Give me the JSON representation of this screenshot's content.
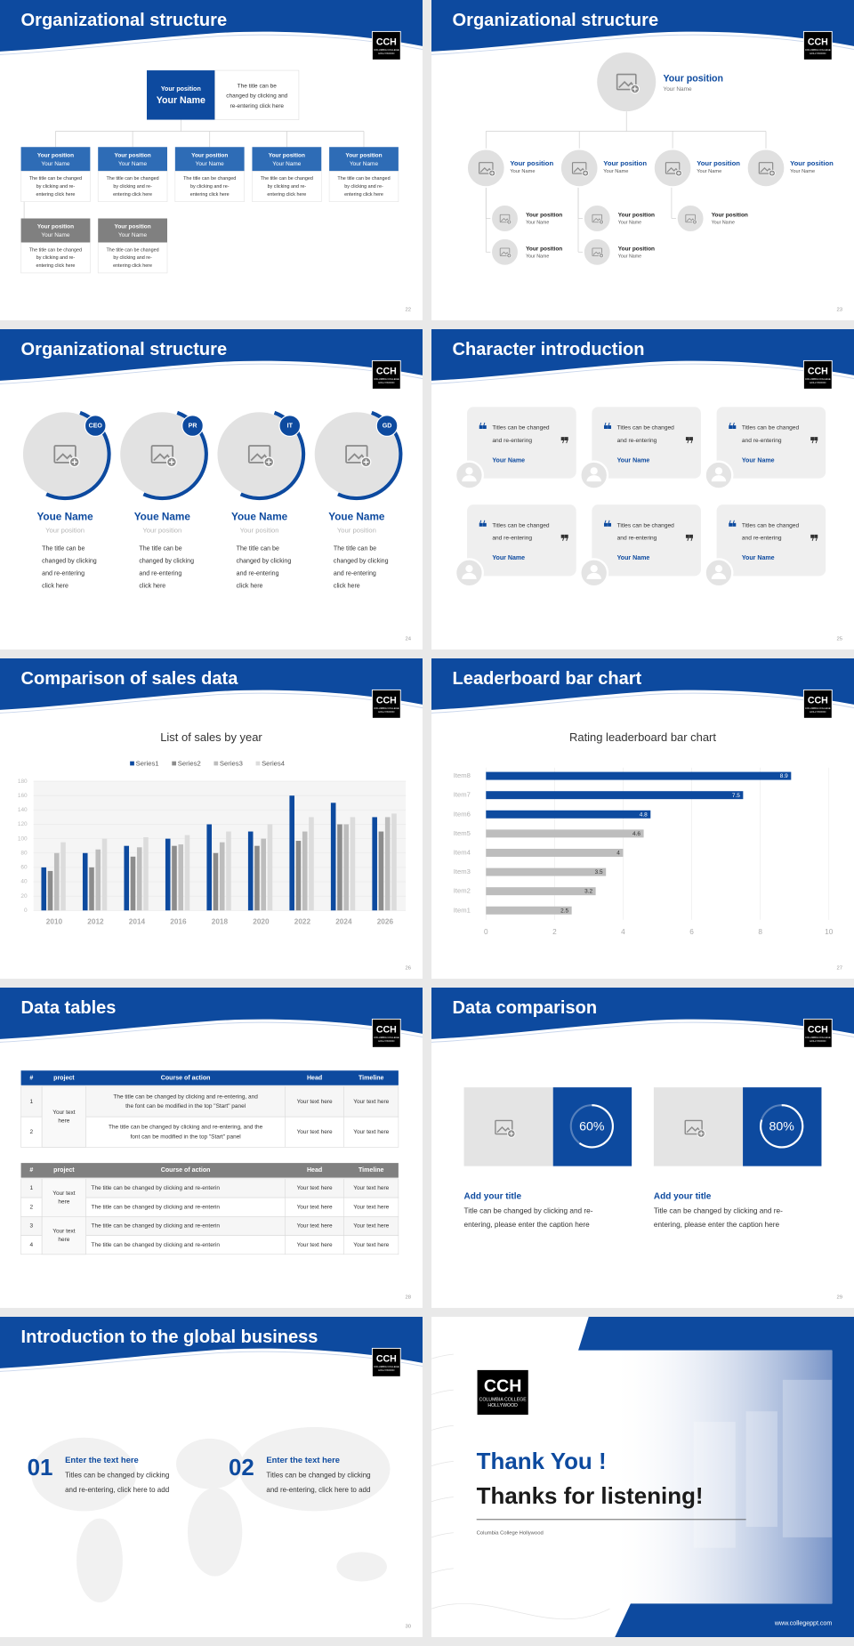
{
  "logo": {
    "mark": "CCH",
    "sub": [
      "COLUMBIA COLLEGE",
      "HOLLYWOOD"
    ]
  },
  "slides": [
    {
      "title": "Organizational structure",
      "page": "22",
      "boss": {
        "position": "Your position",
        "name": "Your Name",
        "note": [
          "The title can be",
          "changed by clicking and",
          "re-entering click here"
        ]
      },
      "members": [
        {
          "position": "Your position",
          "name": "Your Name",
          "note": [
            "The title can be changed",
            "by clicking and re-",
            "entering click here"
          ]
        },
        {
          "position": "Your position",
          "name": "Your Name",
          "note": [
            "The title can be changed",
            "by clicking and re-",
            "entering click here"
          ]
        },
        {
          "position": "Your position",
          "name": "Your Name",
          "note": [
            "The title can be changed",
            "by clicking and re-",
            "entering click here"
          ]
        },
        {
          "position": "Your position",
          "name": "Your Name",
          "note": [
            "The title can be changed",
            "by clicking and re-",
            "entering click here"
          ]
        },
        {
          "position": "Your position",
          "name": "Your Name",
          "note": [
            "The title can be changed",
            "by clicking and re-",
            "entering click here"
          ]
        },
        {
          "position": "Your position",
          "name": "Your Name",
          "note": [
            "The title can be changed",
            "by clicking and re-",
            "entering click here"
          ]
        },
        {
          "position": "Your position",
          "name": "Your Name",
          "note": [
            "The title can be changed",
            "by clicking and re-",
            "entering click here"
          ]
        }
      ]
    },
    {
      "title": "Organizational structure",
      "page": "23",
      "top": {
        "position": "Your position",
        "name": "Your Name"
      },
      "level2": [
        {
          "position": "Your position",
          "name": "Your Name"
        },
        {
          "position": "Your position",
          "name": "Your Name"
        },
        {
          "position": "Your position",
          "name": "Your Name"
        },
        {
          "position": "Your position",
          "name": "Your Name"
        }
      ],
      "level3": [
        {
          "position": "Your position",
          "name": "Your Name"
        },
        {
          "position": "Your position",
          "name": "Your Name"
        },
        {
          "position": "Your position",
          "name": "Your Name"
        },
        {
          "position": "Your position",
          "name": "Your Name"
        },
        {
          "position": "Your position",
          "name": "Your Name"
        }
      ]
    },
    {
      "title": "Organizational structure",
      "page": "24",
      "people": [
        {
          "tag": "CEO",
          "name": "Youe Name",
          "position": "Your position",
          "note": [
            "The title can be",
            "changed by clicking",
            "and re-entering",
            "click here"
          ]
        },
        {
          "tag": "PR",
          "name": "Youe Name",
          "position": "Your position",
          "note": [
            "The title can be",
            "changed by clicking",
            "and re-entering",
            "click here"
          ]
        },
        {
          "tag": "IT",
          "name": "Youe Name",
          "position": "Your position",
          "note": [
            "The title can be",
            "changed by clicking",
            "and re-entering",
            "click here"
          ]
        },
        {
          "tag": "GD",
          "name": "Youe Name",
          "position": "Your position",
          "note": [
            "The title can be",
            "changed by clicking",
            "and re-entering",
            "click here"
          ]
        }
      ]
    },
    {
      "title": "Character introduction",
      "page": "25",
      "cards": [
        {
          "text": [
            "Titles can be changed",
            "and re-entering"
          ],
          "name": "Your Name"
        },
        {
          "text": [
            "Titles can be changed",
            "and re-entering"
          ],
          "name": "Your Name"
        },
        {
          "text": [
            "Titles can be changed",
            "and re-entering"
          ],
          "name": "Your Name"
        },
        {
          "text": [
            "Titles can be changed",
            "and re-entering"
          ],
          "name": "Your Name"
        },
        {
          "text": [
            "Titles can be changed",
            "and re-entering"
          ],
          "name": "Your Name"
        },
        {
          "text": [
            "Titles can be changed",
            "and re-entering"
          ],
          "name": "Your Name"
        }
      ]
    },
    {
      "title": "Comparison of sales data",
      "page": "26",
      "chart_data": {
        "type": "bar",
        "title": "List of sales by year",
        "legend": "top",
        "grid": true,
        "categories": [
          "2010",
          "2012",
          "2014",
          "2016",
          "2018",
          "2020",
          "2022",
          "2024",
          "2026"
        ],
        "series": [
          {
            "name": "Series1",
            "color": "#0d4a9f",
            "values": [
              60,
              80,
              90,
              100,
              120,
              110,
              160,
              150,
              130
            ]
          },
          {
            "name": "Series2",
            "color": "#8c8c8c",
            "values": [
              55,
              60,
              75,
              90,
              80,
              90,
              97,
              120,
              110
            ]
          },
          {
            "name": "Series3",
            "color": "#bdbdbd",
            "values": [
              80,
              85,
              88,
              92,
              95,
              100,
              110,
              120,
              130
            ]
          },
          {
            "name": "Series4",
            "color": "#dcdcdc",
            "values": [
              95,
              100,
              102,
              105,
              110,
              120,
              130,
              130,
              135
            ]
          }
        ],
        "ylim": [
          0,
          180
        ],
        "yticks": [
          0,
          20,
          40,
          60,
          80,
          100,
          120,
          140,
          160,
          180
        ]
      }
    },
    {
      "title": "Leaderboard bar chart",
      "page": "27",
      "chart_data": {
        "type": "barh",
        "title": "Rating leaderboard bar chart",
        "grid": true,
        "categories": [
          "Item1",
          "Item2",
          "Item3",
          "Item4",
          "Item5",
          "Item6",
          "Item7",
          "Item8"
        ],
        "values": [
          2.5,
          3.2,
          3.5,
          4,
          4.6,
          4.8,
          7.5,
          8.9
        ],
        "colors": [
          "#bdbdbd",
          "#bdbdbd",
          "#bdbdbd",
          "#bdbdbd",
          "#bdbdbd",
          "#0d4a9f",
          "#0d4a9f",
          "#0d4a9f"
        ],
        "xlim": [
          0,
          10
        ],
        "xticks": [
          0,
          2,
          4,
          6,
          8,
          10
        ]
      }
    },
    {
      "title": "Data tables",
      "page": "28",
      "tables": [
        {
          "header": [
            "#",
            "project",
            "Course of action",
            "Head",
            "Timeline"
          ],
          "projects": [
            [
              "Your text",
              "here"
            ]
          ],
          "rows": [
            {
              "num": "1",
              "course": [
                "The title can be changed by clicking and re-entering, and",
                "the font can be modified in the top \"Start\" panel"
              ],
              "head": "Your text here",
              "timeline": "Your text here"
            },
            {
              "num": "2",
              "course": [
                "The title can be changed by clicking and re-entering, and the",
                "font can be modified in the top \"Start\" panel"
              ],
              "head": "Your text here",
              "timeline": "Your text here"
            }
          ]
        },
        {
          "header": [
            "#",
            "project",
            "Course of action",
            "Head",
            "Timeline"
          ],
          "projects": [
            [
              "Your text",
              "here"
            ],
            [
              "Your text",
              "here"
            ]
          ],
          "rows": [
            {
              "num": "1",
              "course": [
                "The title can be changed by clicking and re-enterin"
              ],
              "head": "Your text here",
              "timeline": "Your text here"
            },
            {
              "num": "2",
              "course": [
                "The title can be changed by clicking and re-enterin"
              ],
              "head": "Your text here",
              "timeline": "Your text here"
            },
            {
              "num": "3",
              "course": [
                "The title can be changed by clicking and re-enterin"
              ],
              "head": "Your text here",
              "timeline": "Your text here"
            },
            {
              "num": "4",
              "course": [
                "The title can be changed by clicking and re-enterin"
              ],
              "head": "Your text here",
              "timeline": "Your text here"
            }
          ]
        }
      ]
    },
    {
      "title": "Data comparison",
      "page": "29",
      "items": [
        {
          "value": 60,
          "value_label": "60%",
          "title": "Add your title",
          "desc": [
            "Title can be changed by clicking and re-",
            "entering, please enter the caption here"
          ]
        },
        {
          "value": 80,
          "value_label": "80%",
          "title": "Add your title",
          "desc": [
            "Title can be changed by clicking and re-",
            "entering, please enter the caption here"
          ]
        }
      ]
    },
    {
      "title": "Introduction to the global business",
      "page": "30",
      "items": [
        {
          "num": "01",
          "title": "Enter the text here",
          "desc": [
            "Titles can be changed by clicking",
            "and re-entering, click here to add"
          ]
        },
        {
          "num": "02",
          "title": "Enter the text here",
          "desc": [
            "Titles can be changed by clicking",
            "and re-entering, click here to add"
          ]
        }
      ]
    },
    {
      "thanks": "Thank You !",
      "subtitle": "Thanks for listening!",
      "org": "Columbia College Hollywood",
      "url": "www.collegeppt.com"
    }
  ]
}
